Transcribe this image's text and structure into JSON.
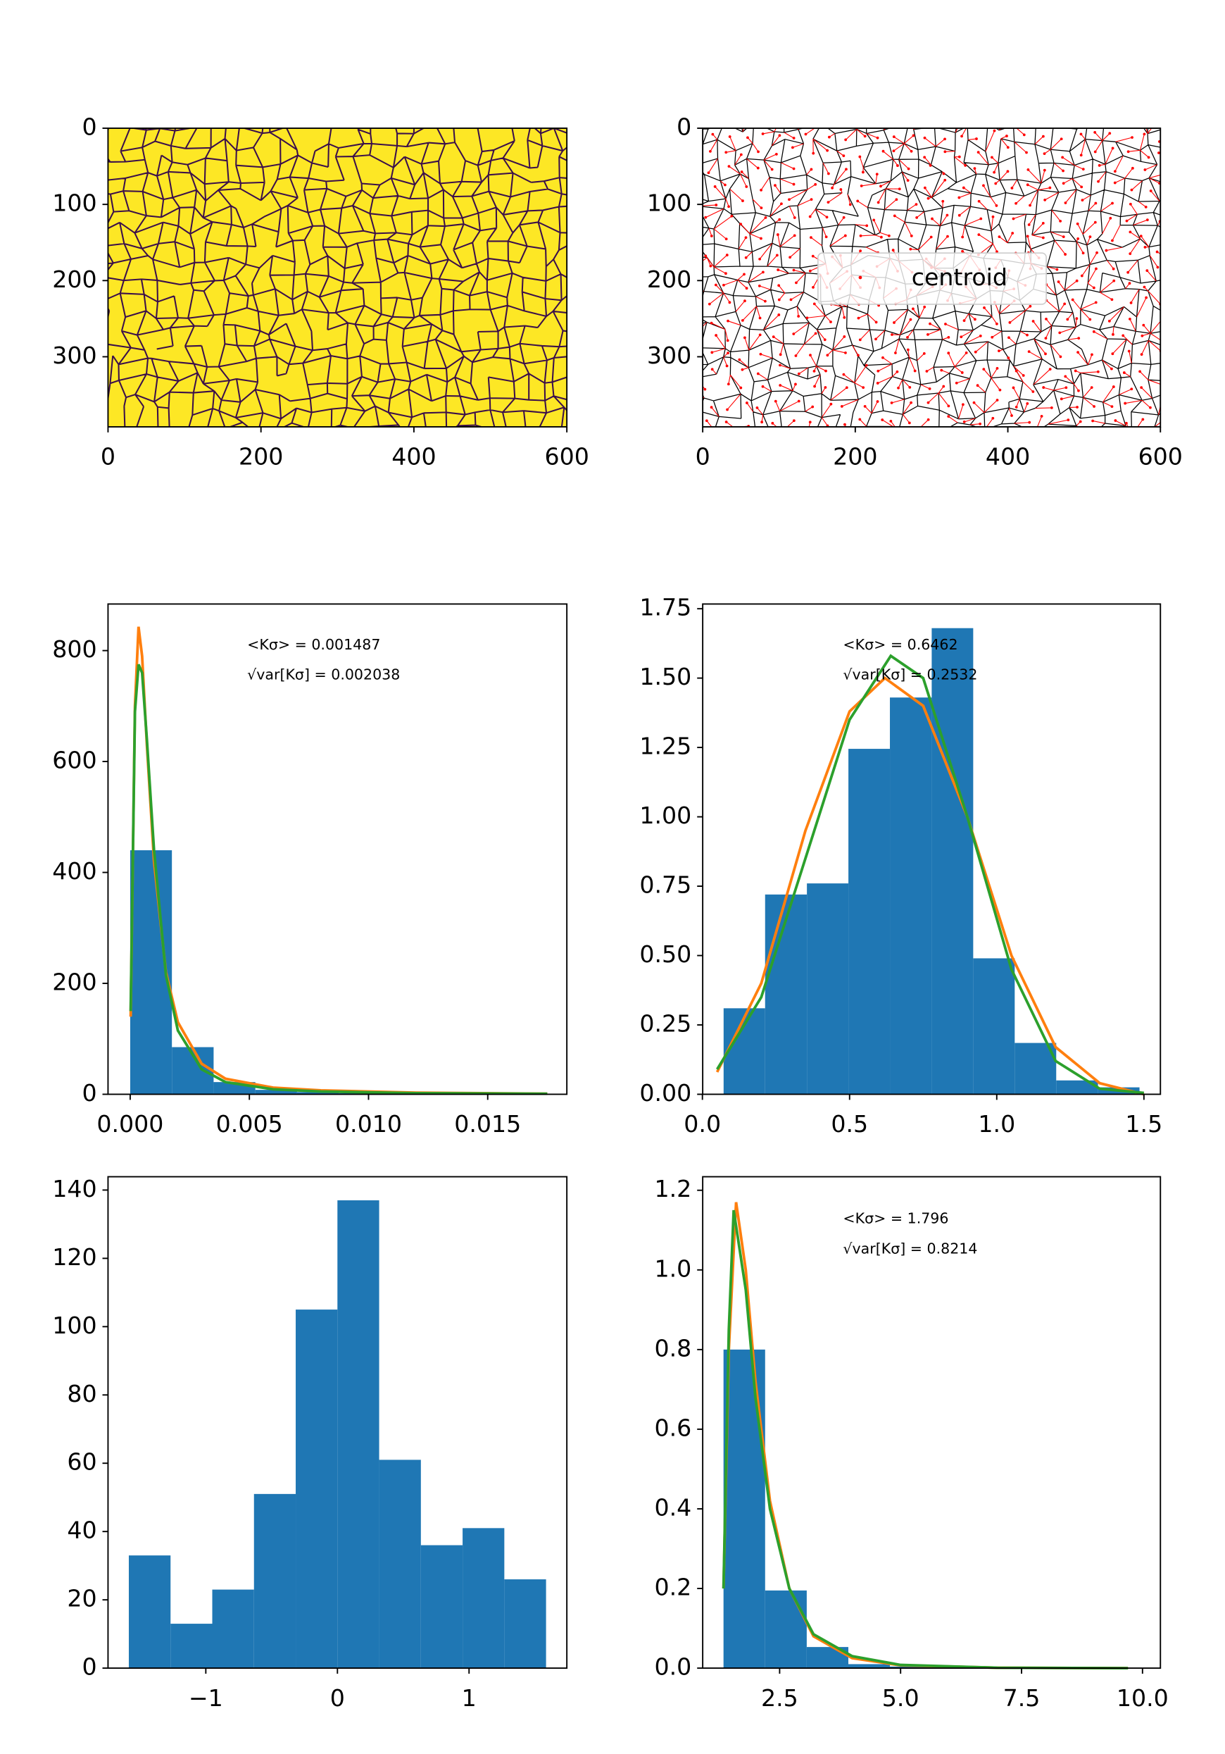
{
  "chart_data": [
    {
      "type": "image",
      "xlim": [
        0,
        600
      ],
      "ylim": [
        392,
        0
      ],
      "xticks": [
        0,
        200,
        400,
        600
      ],
      "yticks": [
        0,
        100,
        200,
        300
      ],
      "color": "#fde725"
    },
    {
      "type": "image",
      "xlim": [
        0,
        600
      ],
      "ylim": [
        392,
        0
      ],
      "xticks": [
        0,
        200,
        400,
        600
      ],
      "yticks": [
        0,
        100,
        200,
        300
      ],
      "color": "#ffffff",
      "series": [
        {
          "name": "centroid",
          "color": "#ff0000"
        }
      ],
      "legend": "center"
    },
    {
      "type": "histogram",
      "color": "#1f77b4",
      "bins": [
        0,
        0.00175,
        0.0035,
        0.00525,
        0.007,
        0.00875,
        0.0105,
        0.01225,
        0.014,
        0.01575,
        0.0175
      ],
      "values": [
        440,
        85,
        22,
        8,
        4,
        2,
        1,
        1,
        0,
        1
      ],
      "series": [
        {
          "color": "#ff7f0e",
          "x": [
            2e-05,
            0.0002,
            0.00035,
            0.0005,
            0.0007,
            0.001,
            0.0015,
            0.002,
            0.003,
            0.004,
            0.006,
            0.008,
            0.012,
            0.0175
          ],
          "values": [
            140,
            700,
            843,
            790,
            630,
            420,
            220,
            130,
            55,
            28,
            12,
            7,
            3,
            1
          ]
        },
        {
          "color": "#2ca02c",
          "x": [
            2e-05,
            0.0002,
            0.00035,
            0.0005,
            0.0007,
            0.001,
            0.0015,
            0.002,
            0.003,
            0.004,
            0.006,
            0.008,
            0.012,
            0.0175
          ],
          "values": [
            150,
            690,
            775,
            760,
            640,
            440,
            215,
            115,
            45,
            22,
            9,
            5,
            2,
            1
          ]
        }
      ],
      "annotations": [
        "<Kσ> = 0.001487",
        "√var[Kσ] = 0.002038"
      ],
      "xlim": [
        -0.00093,
        0.01832
      ],
      "ylim": [
        0,
        884
      ],
      "xticks": [
        {
          "value": 0,
          "label": "0.000"
        },
        0.005,
        {
          "value": 0.01,
          "label": "0.010"
        },
        0.015
      ],
      "yticks": [
        0,
        200,
        400,
        600,
        800
      ]
    },
    {
      "type": "histogram",
      "color": "#1f77b4",
      "bins": [
        0.072,
        0.213,
        0.355,
        0.496,
        0.637,
        0.779,
        0.92,
        1.061,
        1.202,
        1.344,
        1.485
      ],
      "values": [
        0.31,
        0.72,
        0.76,
        1.245,
        1.43,
        1.68,
        0.49,
        0.185,
        0.05,
        0.025
      ],
      "series": [
        {
          "color": "#ff7f0e",
          "x": [
            0.05,
            0.2,
            0.35,
            0.5,
            0.62,
            0.75,
            0.9,
            1.05,
            1.2,
            1.35,
            1.5
          ],
          "values": [
            0.08,
            0.4,
            0.95,
            1.38,
            1.5,
            1.4,
            1.0,
            0.5,
            0.17,
            0.04,
            0.0
          ]
        },
        {
          "color": "#2ca02c",
          "x": [
            0.05,
            0.2,
            0.35,
            0.5,
            0.64,
            0.75,
            0.9,
            1.05,
            1.2,
            1.35,
            1.5
          ],
          "values": [
            0.09,
            0.35,
            0.85,
            1.35,
            1.58,
            1.5,
            1.0,
            0.45,
            0.12,
            0.02,
            0.005
          ]
        }
      ],
      "annotations": [
        "<Kσ> = 0.6462",
        "√var[Kσ] = 0.2532"
      ],
      "xlim": [
        0.001,
        1.556
      ],
      "ylim": [
        0,
        1.767
      ],
      "xticks": [
        {
          "value": 0,
          "label": "0.0"
        },
        0.5,
        {
          "value": 1,
          "label": "1.0"
        },
        1.5
      ],
      "yticks": [
        {
          "value": 0,
          "label": "0.00"
        },
        0.25,
        {
          "value": 0.5,
          "label": "0.50"
        },
        0.75,
        {
          "value": 1,
          "label": "1.00"
        },
        1.25,
        {
          "value": 1.5,
          "label": "1.50"
        },
        1.75
      ]
    },
    {
      "type": "histogram",
      "color": "#1f77b4",
      "bins": [
        -1.585,
        -1.268,
        -0.951,
        -0.634,
        -0.317,
        0,
        0.317,
        0.634,
        0.951,
        1.268,
        1.585
      ],
      "values": [
        33,
        13,
        23,
        51,
        105,
        137,
        61,
        36,
        41,
        26
      ],
      "xlim": [
        -1.743,
        1.743
      ],
      "ylim": [
        0,
        143.9
      ],
      "xticks": [
        {
          "value": -1,
          "label": "−1"
        },
        0,
        1
      ],
      "yticks": [
        0,
        20,
        40,
        60,
        80,
        100,
        120,
        140
      ]
    },
    {
      "type": "histogram",
      "color": "#1f77b4",
      "bins": [
        1.34,
        2.2,
        3.06,
        3.92,
        4.78,
        5.64,
        6.5,
        7.36,
        8.22,
        9.08,
        9.94
      ],
      "values": [
        0.8,
        0.195,
        0.053,
        0.01,
        0.004,
        0.002,
        0.001,
        0,
        0,
        0.001
      ],
      "series": [
        {
          "color": "#ff7f0e",
          "x": [
            1.34,
            1.45,
            1.6,
            1.8,
            2.0,
            2.3,
            2.7,
            3.2,
            4,
            5,
            7,
            9.7
          ],
          "values": [
            0.2,
            0.8,
            1.17,
            1.0,
            0.72,
            0.42,
            0.2,
            0.08,
            0.025,
            0.007,
            0.001,
            0
          ]
        },
        {
          "color": "#2ca02c",
          "x": [
            1.34,
            1.45,
            1.55,
            1.8,
            2.0,
            2.3,
            2.7,
            3.2,
            4,
            5,
            7,
            9.7
          ],
          "values": [
            0.2,
            0.85,
            1.15,
            0.95,
            0.68,
            0.4,
            0.2,
            0.085,
            0.03,
            0.008,
            0.001,
            0
          ]
        }
      ],
      "annotations": [
        "<Kσ> = 1.796",
        "√var[Kσ] = 0.8214"
      ],
      "xlim": [
        0.91,
        10.37
      ],
      "ylim": [
        0,
        1.234
      ],
      "xticks": [
        2.5,
        {
          "value": 5,
          "label": "5.0"
        },
        7.5,
        {
          "value": 10,
          "label": "10.0"
        }
      ],
      "yticks": [
        {
          "value": 0,
          "label": "0.0"
        },
        0.2,
        0.4,
        0.6,
        0.8,
        {
          "value": 1,
          "label": "1.0"
        },
        1.2
      ]
    }
  ]
}
